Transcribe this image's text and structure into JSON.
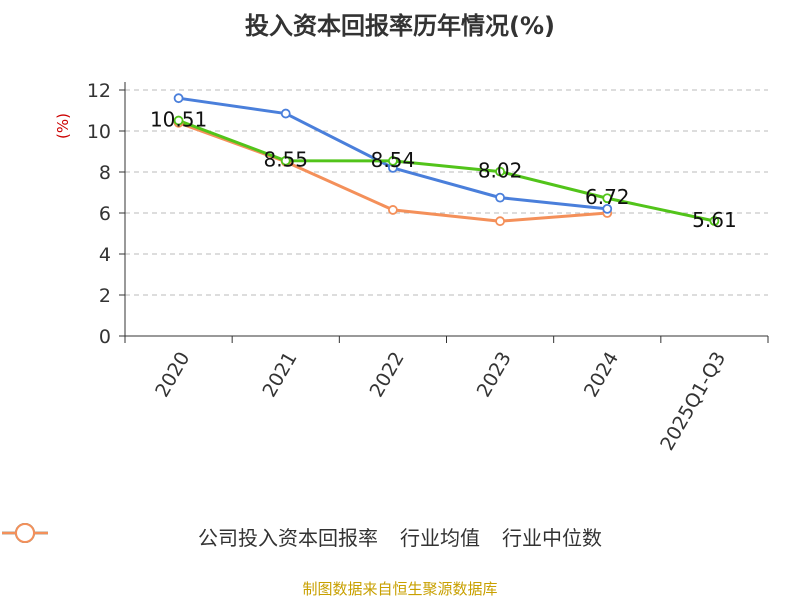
{
  "chart_data": {
    "type": "line",
    "title": "投入资本回报率历年情况(%)",
    "ylabel": "(%)",
    "xlabel": "",
    "ylim": [
      0,
      12
    ],
    "yticks": [
      0,
      2,
      4,
      6,
      8,
      10,
      12
    ],
    "grid": true,
    "legend_position": "bottom",
    "categories": [
      "2020",
      "2021",
      "2022",
      "2023",
      "2024",
      "2025Q1-Q3"
    ],
    "series": [
      {
        "name": "公司投入资本回报率",
        "color": "#52c41a",
        "values": [
          10.51,
          8.55,
          8.54,
          8.02,
          6.72,
          5.61
        ],
        "labels": [
          "10.51",
          "8.55",
          "8.54",
          "8.02",
          "6.72",
          "5.61"
        ]
      },
      {
        "name": "行业均值",
        "color": "#4a7fdb",
        "values": [
          11.6,
          10.85,
          8.2,
          6.75,
          6.2,
          null
        ]
      },
      {
        "name": "行业中位数",
        "color": "#f4905a",
        "values": [
          10.4,
          8.5,
          6.15,
          5.6,
          6.0,
          null
        ]
      }
    ],
    "source": "制图数据来自恒生聚源数据库"
  }
}
